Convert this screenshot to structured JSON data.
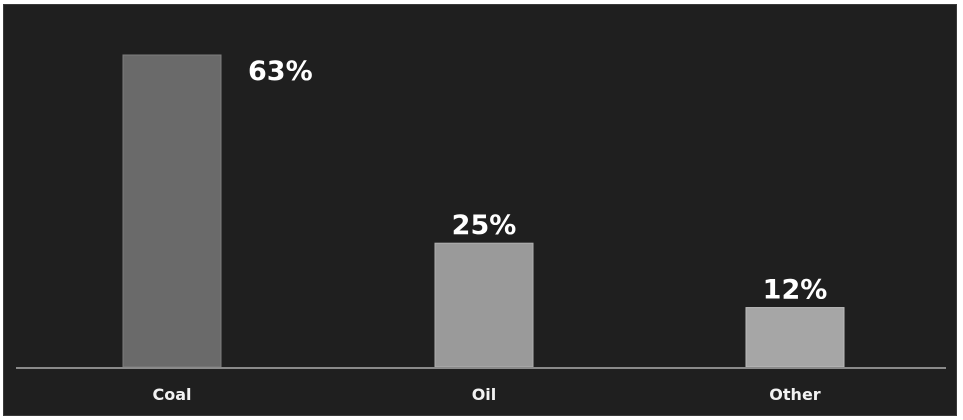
{
  "chart_data": {
    "type": "bar",
    "categories": [
      "Coal",
      "Oil",
      "Other"
    ],
    "values": [
      63,
      25,
      12
    ],
    "value_labels": [
      "63%",
      "25%",
      "12%"
    ],
    "unit": "%",
    "ylim": [
      0,
      63
    ],
    "grid": false,
    "legend": "none",
    "title": "",
    "xlabel": "",
    "ylabel": "",
    "colors": {
      "background": "#1f1f1f",
      "bars": [
        "#6a6a6a",
        "#9a9a9a",
        "#a6a6a6"
      ],
      "bar_edges": [
        "#7e7e7e",
        "#b0b0b0",
        "#bcbcbc"
      ],
      "baseline": "#8a8a8a",
      "text": "#ffffff"
    }
  }
}
